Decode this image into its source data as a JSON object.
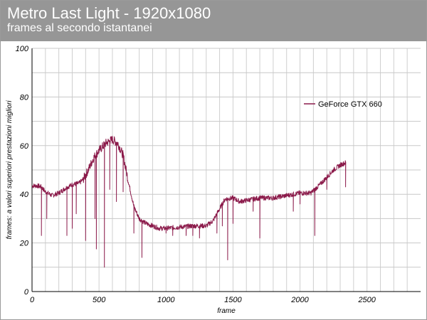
{
  "header": {
    "title": "Metro Last Light - 1920x1080",
    "subtitle": "frames al secondo istantanei"
  },
  "chart_data": {
    "type": "line",
    "title": "Metro Last Light - 1920x1080",
    "subtitle": "frames al secondo istantanei",
    "xlabel": "frame",
    "ylabel": "frames: a valori superiori prestazioni migliori",
    "xlim": [
      0,
      2900
    ],
    "ylim": [
      0,
      100
    ],
    "x_ticks": [
      0,
      500,
      1000,
      1500,
      2000,
      2500
    ],
    "y_ticks": [
      0,
      20,
      40,
      60,
      80,
      100
    ],
    "grid": true,
    "legend_position": "top-right",
    "line_color": "#8b1a4a",
    "series": [
      {
        "name": "GeForce GTX 660",
        "points": [
          [
            0,
            43.5
          ],
          [
            40,
            43.5
          ],
          [
            70,
            43
          ],
          [
            100,
            41
          ],
          [
            150,
            39.5
          ],
          [
            200,
            40.5
          ],
          [
            250,
            42.5
          ],
          [
            300,
            44
          ],
          [
            350,
            44.5
          ],
          [
            380,
            46
          ],
          [
            420,
            50
          ],
          [
            460,
            55
          ],
          [
            500,
            58
          ],
          [
            550,
            61
          ],
          [
            600,
            62.5
          ],
          [
            640,
            61
          ],
          [
            680,
            56
          ],
          [
            720,
            45
          ],
          [
            760,
            35
          ],
          [
            800,
            30
          ],
          [
            850,
            28
          ],
          [
            900,
            27
          ],
          [
            950,
            26
          ],
          [
            1000,
            26
          ],
          [
            1100,
            26.5
          ],
          [
            1200,
            27
          ],
          [
            1300,
            27
          ],
          [
            1350,
            29
          ],
          [
            1400,
            34
          ],
          [
            1440,
            38
          ],
          [
            1500,
            38.5
          ],
          [
            1550,
            37
          ],
          [
            1600,
            37.5
          ],
          [
            1650,
            38
          ],
          [
            1700,
            38.5
          ],
          [
            1800,
            38.5
          ],
          [
            1900,
            39.5
          ],
          [
            2000,
            40.5
          ],
          [
            2080,
            40.5
          ],
          [
            2150,
            44
          ],
          [
            2200,
            47
          ],
          [
            2250,
            50
          ],
          [
            2300,
            52
          ],
          [
            2340,
            53
          ]
        ],
        "dips": [
          [
            70,
            23
          ],
          [
            110,
            30
          ],
          [
            260,
            23
          ],
          [
            300,
            26
          ],
          [
            330,
            32
          ],
          [
            400,
            21
          ],
          [
            470,
            30
          ],
          [
            480,
            17.5
          ],
          [
            540,
            10
          ],
          [
            580,
            42
          ],
          [
            630,
            37
          ],
          [
            680,
            41
          ],
          [
            760,
            24
          ],
          [
            820,
            14
          ],
          [
            1000,
            24
          ],
          [
            1050,
            23
          ],
          [
            1150,
            23
          ],
          [
            1200,
            23
          ],
          [
            1250,
            22
          ],
          [
            1380,
            24
          ],
          [
            1420,
            27
          ],
          [
            1460,
            13
          ],
          [
            1500,
            28
          ],
          [
            1650,
            33
          ],
          [
            1700,
            22
          ],
          [
            1950,
            33
          ],
          [
            2000,
            36
          ],
          [
            2110,
            23
          ],
          [
            2200,
            42
          ],
          [
            2340,
            43
          ]
        ]
      }
    ]
  }
}
